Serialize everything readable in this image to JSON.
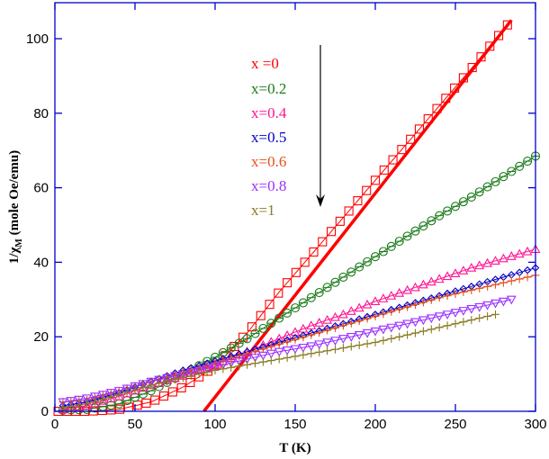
{
  "chart_data": {
    "type": "scatter",
    "title": "",
    "xlabel": "T (K)",
    "ylabel": "1/χM (mole Oe/emu)",
    "xlim": [
      0,
      300
    ],
    "ylim": [
      0,
      110
    ],
    "xticks": [
      0,
      50,
      100,
      150,
      200,
      250,
      300
    ],
    "yticks": [
      0,
      20,
      40,
      60,
      80,
      100
    ],
    "grid": false,
    "legend_position": "upper-center",
    "annotation": "downward arrow next to legend indicating increasing x",
    "series": [
      {
        "name": "x =0",
        "label": "x =0",
        "color": "#ff0000",
        "marker": "square",
        "x": [
          2,
          20,
          40,
          60,
          80,
          100,
          120,
          140,
          160,
          180,
          200,
          220,
          240,
          260,
          285
        ],
        "y": [
          0,
          0,
          0.5,
          2.5,
          6.5,
          12,
          21,
          32,
          42,
          52,
          62,
          72,
          82,
          92,
          105
        ],
        "fit": {
          "x": [
            93,
            285
          ],
          "y": [
            0,
            105
          ]
        }
      },
      {
        "name": "x=0.2",
        "label": "x=0.2",
        "color": "#1a7a1a",
        "marker": "circle",
        "x": [
          5,
          20,
          40,
          60,
          80,
          100,
          120,
          140,
          160,
          180,
          200,
          220,
          240,
          260,
          280,
          300
        ],
        "y": [
          0.3,
          0.5,
          2,
          5.5,
          10,
          14.5,
          19.5,
          25,
          30.5,
          36,
          41.5,
          47,
          52.5,
          57.5,
          63,
          68.5
        ]
      },
      {
        "name": "x=0.4",
        "label": "x=0.4",
        "color": "#ff1493",
        "marker": "triangle-up",
        "x": [
          5,
          20,
          40,
          60,
          80,
          100,
          120,
          140,
          160,
          180,
          200,
          220,
          240,
          260,
          280,
          300
        ],
        "y": [
          0.5,
          1.5,
          4,
          7,
          9.5,
          12.5,
          16,
          19.5,
          23,
          26,
          29.5,
          32.5,
          35.5,
          38.5,
          41,
          43.5
        ]
      },
      {
        "name": "x=0.5",
        "label": "x=0.5",
        "color": "#0000cc",
        "marker": "diamond",
        "x": [
          5,
          20,
          40,
          60,
          80,
          100,
          120,
          140,
          160,
          180,
          200,
          220,
          240,
          260,
          280,
          300
        ],
        "y": [
          1.5,
          2.5,
          5,
          8,
          11,
          13.5,
          16,
          18.5,
          21,
          23.5,
          26,
          28.5,
          31,
          33.5,
          36,
          38.5
        ]
      },
      {
        "name": "x=0.6",
        "label": "x=0.6",
        "color": "#e8501a",
        "marker": "plus",
        "x": [
          5,
          20,
          40,
          60,
          80,
          100,
          120,
          140,
          160,
          180,
          200,
          220,
          240,
          260,
          280,
          300
        ],
        "y": [
          2.5,
          3,
          5.5,
          8,
          10.5,
          13,
          15.5,
          18,
          20.5,
          23,
          25.5,
          28,
          30.5,
          32.5,
          34.5,
          36.5
        ]
      },
      {
        "name": "x=0.8",
        "label": "x=0.8",
        "color": "#9b30ff",
        "marker": "triangle-down",
        "x": [
          5,
          20,
          40,
          60,
          80,
          100,
          120,
          140,
          160,
          180,
          200,
          220,
          240,
          260,
          285
        ],
        "y": [
          2.5,
          3.5,
          5.5,
          8,
          10,
          12,
          14,
          16,
          17.5,
          19.5,
          21.5,
          23.5,
          25.5,
          27.5,
          30
        ]
      },
      {
        "name": "x=1",
        "label": "x=1",
        "color": "#8b7a20",
        "marker": "plus",
        "x": [
          5,
          20,
          40,
          60,
          80,
          100,
          120,
          140,
          160,
          180,
          200,
          220,
          240,
          260,
          275
        ],
        "y": [
          1,
          2,
          4.5,
          7,
          9,
          11,
          12.5,
          14,
          15.5,
          17,
          18.5,
          20.5,
          22.5,
          24.5,
          26
        ]
      }
    ]
  },
  "legend": {
    "items": [
      {
        "label": "x =0",
        "color": "#ff0000"
      },
      {
        "label": "x=0.2",
        "color": "#1a7a1a"
      },
      {
        "label": "x=0.4",
        "color": "#ff1493"
      },
      {
        "label": "x=0.5",
        "color": "#0000cc"
      },
      {
        "label": "x=0.6",
        "color": "#e8501a"
      },
      {
        "label": "x=0.8",
        "color": "#9b30ff"
      },
      {
        "label": "x=1",
        "color": "#8b7a20"
      }
    ]
  },
  "axes": {
    "x_title": "T (K)",
    "y_title_main": "1/χ",
    "y_title_sub": "M",
    "y_title_units": " (mole Oe/emu)",
    "frame_color": "#0000cc"
  }
}
